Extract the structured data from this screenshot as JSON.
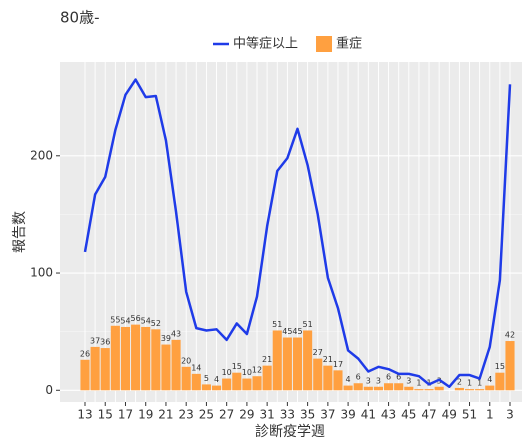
{
  "chart_data": {
    "type": "bar_line",
    "title": "80歳-",
    "x_label": "診断疫学週",
    "y_label": "報告数",
    "categories": [
      "13",
      null,
      "15",
      null,
      "17",
      null,
      "19",
      null,
      "21",
      null,
      "23",
      null,
      "25",
      null,
      "27",
      null,
      "29",
      null,
      "31",
      null,
      "33",
      null,
      "35",
      null,
      "37",
      null,
      "39",
      null,
      "41",
      null,
      "43",
      null,
      "45",
      null,
      "47",
      null,
      "49",
      null,
      "51",
      null,
      "1",
      null,
      "3"
    ],
    "series": [
      {
        "name": "中等症以上",
        "kind": "line",
        "color": "#1f3be8",
        "values": [
          118,
          167,
          182,
          222,
          252,
          265,
          250,
          251,
          213,
          152,
          84,
          53,
          51,
          52,
          43,
          57,
          48,
          80,
          140,
          187,
          198,
          223,
          192,
          150,
          96,
          70,
          34,
          27,
          16,
          20,
          18,
          14,
          14,
          12,
          5,
          9,
          3,
          13,
          13,
          10,
          37,
          94,
          261
        ]
      },
      {
        "name": "重症",
        "kind": "bar",
        "color": "#ffa040",
        "values": [
          26,
          37,
          36,
          55,
          54,
          56,
          54,
          52,
          39,
          43,
          20,
          14,
          5,
          4,
          10,
          15,
          10,
          12,
          21,
          51,
          45,
          45,
          51,
          27,
          21,
          17,
          4,
          6,
          3,
          3,
          6,
          6,
          3,
          1,
          1,
          3,
          null,
          2,
          1,
          1,
          4,
          15,
          42
        ]
      }
    ],
    "ylim": [
      -10,
      280
    ],
    "yticks": [
      0,
      100,
      200
    ],
    "grid": true
  }
}
